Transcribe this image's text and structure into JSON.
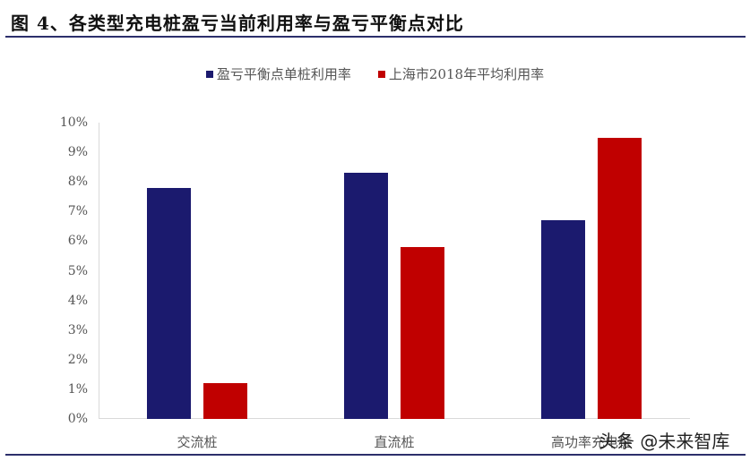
{
  "title": "图 4、各类型充电桩盈亏当前利用率与盈亏平衡点对比",
  "watermark": "头条 @未来智库",
  "colors": {
    "series1": "#1b1a6e",
    "series2": "#c00000",
    "rule": "#2c2f6b"
  },
  "legend": [
    {
      "label": "盈亏平衡点单桩利用率",
      "color": "#1b1a6e"
    },
    {
      "label": "上海市2018年平均利用率",
      "color": "#c00000"
    }
  ],
  "yticks": [
    "0%",
    "1%",
    "2%",
    "3%",
    "4%",
    "5%",
    "6%",
    "7%",
    "8%",
    "9%",
    "10%"
  ],
  "chart_data": {
    "type": "bar",
    "title": "图 4、各类型充电桩盈亏当前利用率与盈亏平衡点对比",
    "categories": [
      "交流桩",
      "直流桩",
      "高功率充电桩"
    ],
    "series": [
      {
        "name": "盈亏平衡点单桩利用率",
        "values": [
          7.8,
          8.3,
          6.7
        ]
      },
      {
        "name": "上海市2018年平均利用率",
        "values": [
          1.2,
          5.8,
          9.5
        ]
      }
    ],
    "xlabel": "",
    "ylabel": "",
    "ylim": [
      0,
      10
    ],
    "yunit": "%",
    "grid": false,
    "legend_position": "top"
  }
}
